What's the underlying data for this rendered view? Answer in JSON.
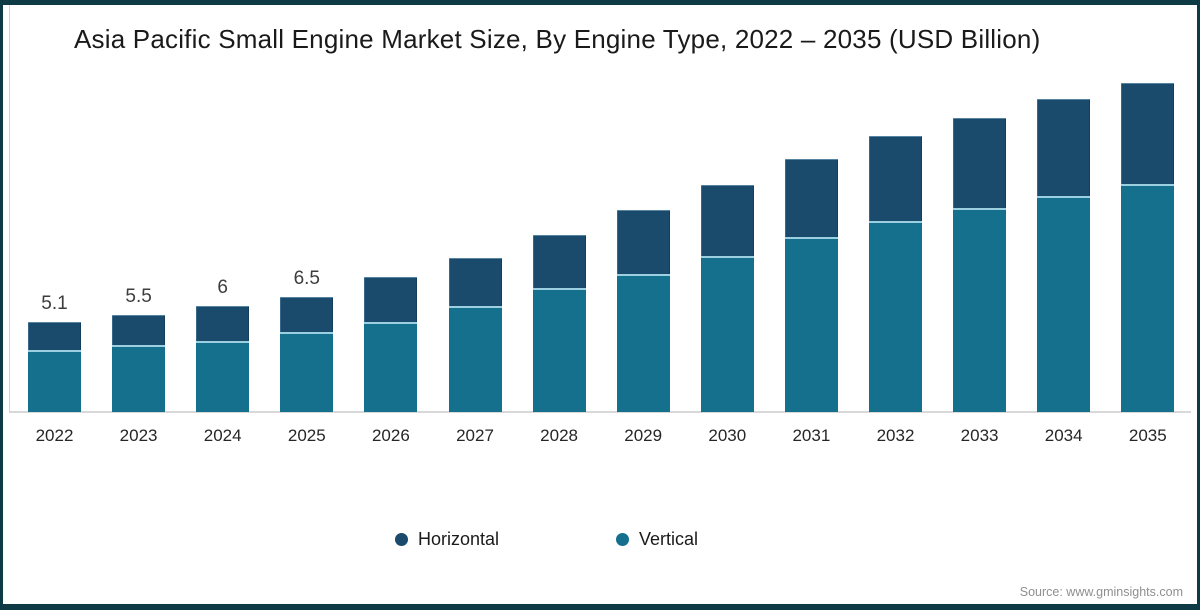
{
  "page": {
    "title": "Asia Pacific Small Engine Market Size, By Engine Type, 2022 – 2035 (USD Billion)",
    "source": "Source: www.gminsights.com"
  },
  "colors": {
    "horizontal_series": "#1a4a6c",
    "vertical_series": "#15708e",
    "frame_border": "#0d3a44",
    "axis_line": "#d8d8d8",
    "segment_separator": "#9ccfdf",
    "title_text": "#1a1a1a",
    "source_text": "#8f8f8f"
  },
  "legend": {
    "items": [
      {
        "label": "Horizontal",
        "color": "#1a4a6c"
      },
      {
        "label": "Vertical",
        "color": "#15708e"
      }
    ]
  },
  "chart_data": {
    "type": "bar",
    "stacked": true,
    "title": "Asia Pacific Small Engine Market Size, By Engine Type, 2022 – 2035 (USD Billion)",
    "xlabel": "",
    "ylabel": "USD Billion",
    "categories": [
      "2022",
      "2023",
      "2024",
      "2025",
      "2026",
      "2027",
      "2028",
      "2029",
      "2030",
      "2031",
      "2032",
      "2033",
      "2034",
      "2035"
    ],
    "series": [
      {
        "name": "Horizontal",
        "color": "#1a4a6c",
        "values": [
          1.6,
          1.7,
          2.0,
          2.0,
          2.5,
          2.7,
          3.0,
          3.6,
          4.0,
          4.4,
          4.8,
          5.1,
          5.5,
          5.7
        ]
      },
      {
        "name": "Vertical",
        "color": "#15708e",
        "values": [
          3.5,
          3.8,
          4.0,
          4.5,
          5.1,
          6.0,
          7.0,
          7.8,
          8.8,
          9.9,
          10.8,
          11.5,
          12.2,
          12.9
        ]
      }
    ],
    "totals": [
      5.1,
      5.5,
      6.0,
      6.5,
      7.6,
      8.7,
      10.0,
      11.4,
      12.8,
      14.3,
      15.6,
      16.6,
      17.7,
      18.6
    ],
    "data_labels": [
      "5.1",
      "5.5",
      "6",
      "6.5",
      "",
      "",
      "",
      "",
      "",
      "",
      "",
      "",
      "",
      ""
    ],
    "ylim": [
      0,
      19
    ],
    "grid": false,
    "y_axis_visible": false,
    "legend_position": "bottom"
  }
}
